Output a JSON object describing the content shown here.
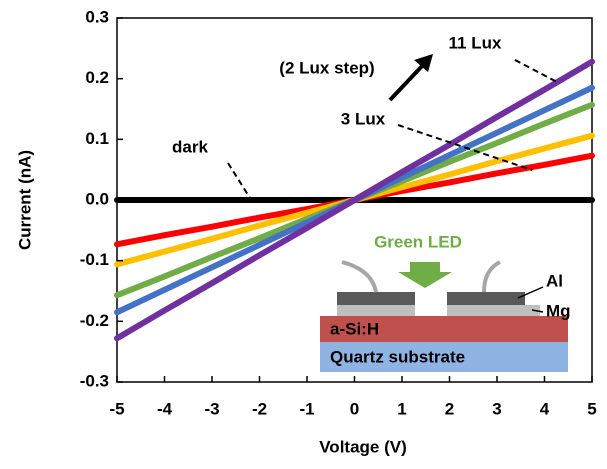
{
  "chart_data": {
    "type": "line",
    "x_label": "Voltage (V)",
    "y_label": "Current (nA)",
    "x": [
      -5,
      -4,
      -3,
      -2,
      -1,
      0,
      1,
      2,
      3,
      4,
      5
    ],
    "series": [
      {
        "name": "dark",
        "color": "#000000",
        "values": [
          0,
          0,
          0,
          0,
          0,
          0,
          0,
          0,
          0,
          0,
          0
        ]
      },
      {
        "name": "3 Lux",
        "color": "#ff0000",
        "values": [
          -0.073,
          -0.058,
          -0.044,
          -0.029,
          -0.015,
          0,
          0.015,
          0.029,
          0.044,
          0.058,
          0.073
        ]
      },
      {
        "color": "#ffc000",
        "values": [
          -0.106,
          -0.085,
          -0.064,
          -0.042,
          -0.021,
          0,
          0.021,
          0.042,
          0.064,
          0.085,
          0.106
        ]
      },
      {
        "color": "#70ad47",
        "values": [
          -0.157,
          -0.126,
          -0.094,
          -0.063,
          -0.031,
          0,
          0.031,
          0.063,
          0.094,
          0.126,
          0.157
        ]
      },
      {
        "color": "#4472c4",
        "values": [
          -0.185,
          -0.148,
          -0.111,
          -0.074,
          -0.037,
          0,
          0.037,
          0.074,
          0.111,
          0.148,
          0.185
        ]
      },
      {
        "name": "11 Lux",
        "color": "#7030a0",
        "values": [
          -0.228,
          -0.182,
          -0.137,
          -0.091,
          -0.046,
          0,
          0.046,
          0.091,
          0.137,
          0.182,
          0.228
        ]
      }
    ],
    "annotations": [
      "(2 Lux step)"
    ],
    "inset": {
      "light": "Green LED",
      "top_layer": "Al",
      "contact_layer": "Mg",
      "film": "a-Si:H",
      "substrate": "Quartz substrate"
    },
    "xlim": [
      -5,
      5
    ],
    "xticks": [
      -5,
      -4,
      -3,
      -2,
      -1,
      0,
      1,
      2,
      3,
      4,
      5
    ],
    "ylim": [
      -0.3,
      0.3
    ],
    "yticks": [
      -0.3,
      -0.2,
      -0.1,
      {
        "value": 0,
        "label": "0.0"
      },
      0.1,
      0.2,
      0.3
    ]
  }
}
